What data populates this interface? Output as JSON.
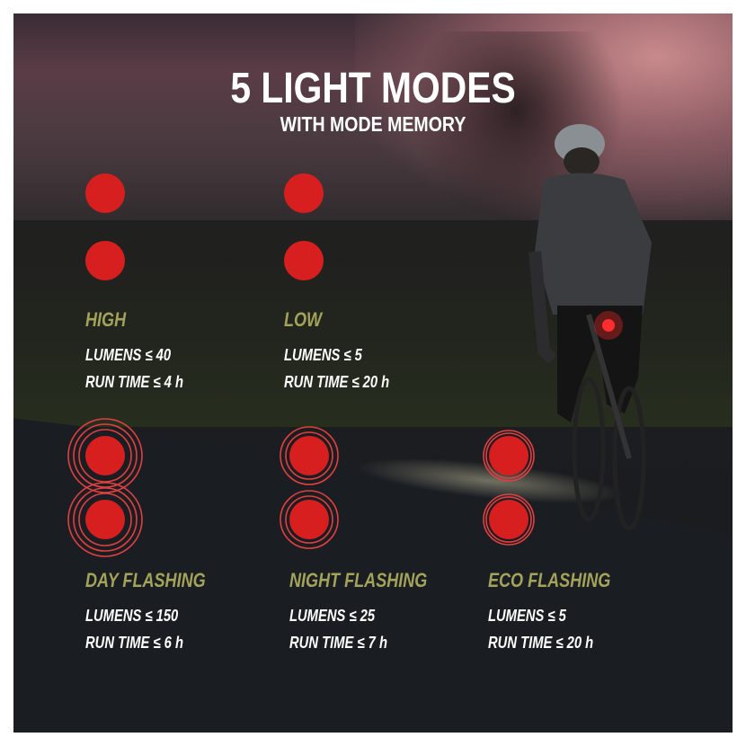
{
  "title": "5 LIGHT MODES",
  "subtitle": "WITH MODE MEMORY",
  "colors": {
    "light_red": "#d71f1f",
    "ring_red": "#e0403f",
    "mode_label": "#a3a35a",
    "text": "#ffffff"
  },
  "modes": [
    {
      "name": "HIGH",
      "lumens": "LUMENS ≤ 40",
      "runtime": "RUN TIME ≤ 4 h",
      "icon": "steady-light-icon"
    },
    {
      "name": "LOW",
      "lumens": "LUMENS ≤ 5",
      "runtime": "RUN TIME ≤ 20 h",
      "icon": "steady-light-icon"
    },
    {
      "name": "DAY FLASHING",
      "lumens": "LUMENS ≤ 150",
      "runtime": "RUN TIME ≤ 6 h",
      "icon": "flashing-light-icon"
    },
    {
      "name": "NIGHT FLASHING",
      "lumens": "LUMENS ≤ 25",
      "runtime": "RUN TIME ≤ 7 h",
      "icon": "flashing-light-icon"
    },
    {
      "name": "ECO FLASHING",
      "lumens": "LUMENS ≤ 5",
      "runtime": "RUN TIME ≤ 20 h",
      "icon": "flashing-light-icon"
    }
  ]
}
